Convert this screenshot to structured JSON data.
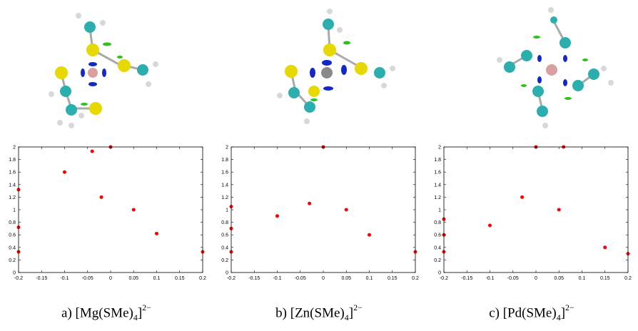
{
  "figure": {
    "panels": [
      {
        "label": "a)",
        "metal": "Mg",
        "ligand": "SMe",
        "count": "4",
        "charge": "2−"
      },
      {
        "label": "b)",
        "metal": "Zn",
        "ligand": "SMe",
        "count": "4",
        "charge": "2−"
      },
      {
        "label": "c)",
        "metal": "Pd",
        "ligand": "SMe",
        "count": "4",
        "charge": "2−"
      }
    ]
  },
  "colors": {
    "data": "#ff0000",
    "sulfur": "#e6d800",
    "carbon": "#2aaeae",
    "hydrogen": "#d8d8d8",
    "nci_strong": "#1428c8",
    "nci_weak": "#2ec21a",
    "mg_zn_pd": [
      "#d9a0a0",
      "#8a8a8a",
      "#d9a0a0"
    ]
  },
  "chart_data": [
    {
      "type": "scatter",
      "xlim": [
        -0.2,
        0.2
      ],
      "ylim": [
        0,
        2
      ],
      "xticks": [
        "-0.2",
        "-0.15",
        "-0.1",
        "-0.05",
        "0",
        "0.05",
        "0.1",
        "0.15",
        "0.2"
      ],
      "yticks": [
        "0",
        "0.2",
        "0.4",
        "0.6",
        "0.8",
        "1",
        "1.2",
        "1.4",
        "1.6",
        "1.8",
        "2"
      ],
      "series": [
        {
          "values": [
            [
              -0.2,
              0.33
            ],
            [
              -0.2,
              0.72
            ],
            [
              -0.2,
              1.32
            ],
            [
              -0.1,
              1.6
            ],
            [
              -0.04,
              1.93
            ],
            [
              -0.02,
              1.2
            ],
            [
              0,
              2
            ],
            [
              0.05,
              1.0
            ],
            [
              0.1,
              0.62
            ],
            [
              0.2,
              0.33
            ]
          ]
        }
      ]
    },
    {
      "type": "scatter",
      "xlim": [
        -0.2,
        0.2
      ],
      "ylim": [
        0,
        2
      ],
      "xticks": [
        "-0.2",
        "-0.15",
        "-0.1",
        "-0.05",
        "0",
        "0.05",
        "0.1",
        "0.15",
        "0.2"
      ],
      "yticks": [
        "0",
        "0.2",
        "0.4",
        "0.6",
        "0.8",
        "1",
        "1.2",
        "1.4",
        "1.6",
        "1.8",
        "2"
      ],
      "series": [
        {
          "values": [
            [
              -0.2,
              0.33
            ],
            [
              -0.2,
              0.7
            ],
            [
              -0.2,
              1.05
            ],
            [
              -0.1,
              0.9
            ],
            [
              -0.03,
              1.1
            ],
            [
              0,
              2
            ],
            [
              0.05,
              1.0
            ],
            [
              0.1,
              0.6
            ],
            [
              0.2,
              0.33
            ]
          ]
        }
      ]
    },
    {
      "type": "scatter",
      "xlim": [
        -0.2,
        0.2
      ],
      "ylim": [
        0,
        2
      ],
      "xticks": [
        "-0.2",
        "-0.15",
        "-0.1",
        "-0.05",
        "0",
        "0.05",
        "0.1",
        "0.15",
        "0.2"
      ],
      "yticks": [
        "0",
        "0.2",
        "0.4",
        "0.6",
        "0.8",
        "1",
        "1.2",
        "1.4",
        "1.6",
        "1.8",
        "2"
      ],
      "series": [
        {
          "values": [
            [
              -0.2,
              0.33
            ],
            [
              -0.2,
              0.6
            ],
            [
              -0.2,
              0.85
            ],
            [
              -0.1,
              0.75
            ],
            [
              -0.03,
              1.2
            ],
            [
              0,
              2
            ],
            [
              0.05,
              1.0
            ],
            [
              0.06,
              2
            ],
            [
              0.15,
              0.4
            ],
            [
              0.2,
              0.3
            ]
          ]
        }
      ]
    }
  ]
}
